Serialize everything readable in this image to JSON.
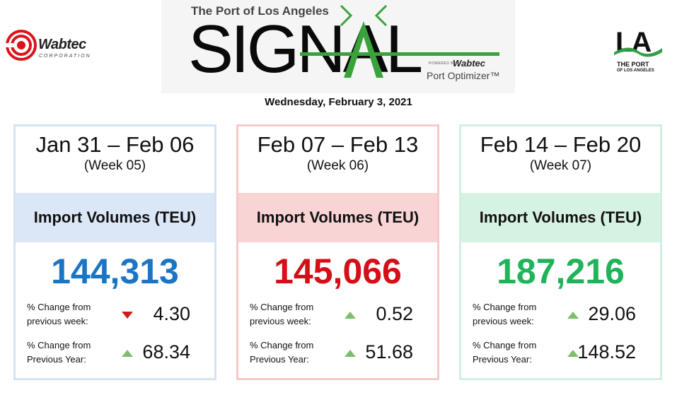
{
  "header": {
    "left_logo": {
      "name": "Wabtec",
      "sub": "CORPORATION",
      "icon": "wabtec-swirl-icon"
    },
    "banner": {
      "top_text": "The Port of Los Angeles",
      "title": "SIGNAL",
      "powered_by": "POWERED BY",
      "powered_brand": "Wabtec",
      "product": "Port Optimizer™"
    },
    "right_logo": {
      "letters": "LA",
      "name": "THE PORT",
      "sub": "OF LOS ANGELES"
    },
    "date": "Wednesday, February 3, 2021"
  },
  "colors": {
    "blue": "#1a75c4",
    "red": "#d40f16",
    "green": "#1fb35a",
    "arrow_up": "#7dbf6a",
    "arrow_down": "#d21c1c"
  },
  "cards": [
    {
      "dates": "Jan 31 – Feb 06",
      "week": "(Week 05)",
      "band": "Import Volumes (TEU)",
      "value": "144,313",
      "value_color": "#1a75c4",
      "week_label": "% Change from previous week:",
      "week_change": "4.30",
      "week_dir": "down",
      "year_label": "% Change from Previous Year:",
      "year_change": "68.34",
      "year_dir": "up"
    },
    {
      "dates": "Feb 07 – Feb 13",
      "week": "(Week 06)",
      "band": "Import Volumes (TEU)",
      "value": "145,066",
      "value_color": "#d40f16",
      "week_label": "% Change from previous week:",
      "week_change": "0.52",
      "week_dir": "up",
      "year_label": "% Change from Previous Year:",
      "year_change": "51.68",
      "year_dir": "up"
    },
    {
      "dates": "Feb 14 – Feb 20",
      "week": "(Week 07)",
      "band": "Import Volumes (TEU)",
      "value": "187,216",
      "value_color": "#1fb35a",
      "week_label": "% Change from previous week:",
      "week_change": "29.06",
      "week_dir": "up",
      "year_label": "% Change from Previous Year:",
      "year_change": "148.52",
      "year_dir": "up"
    }
  ]
}
